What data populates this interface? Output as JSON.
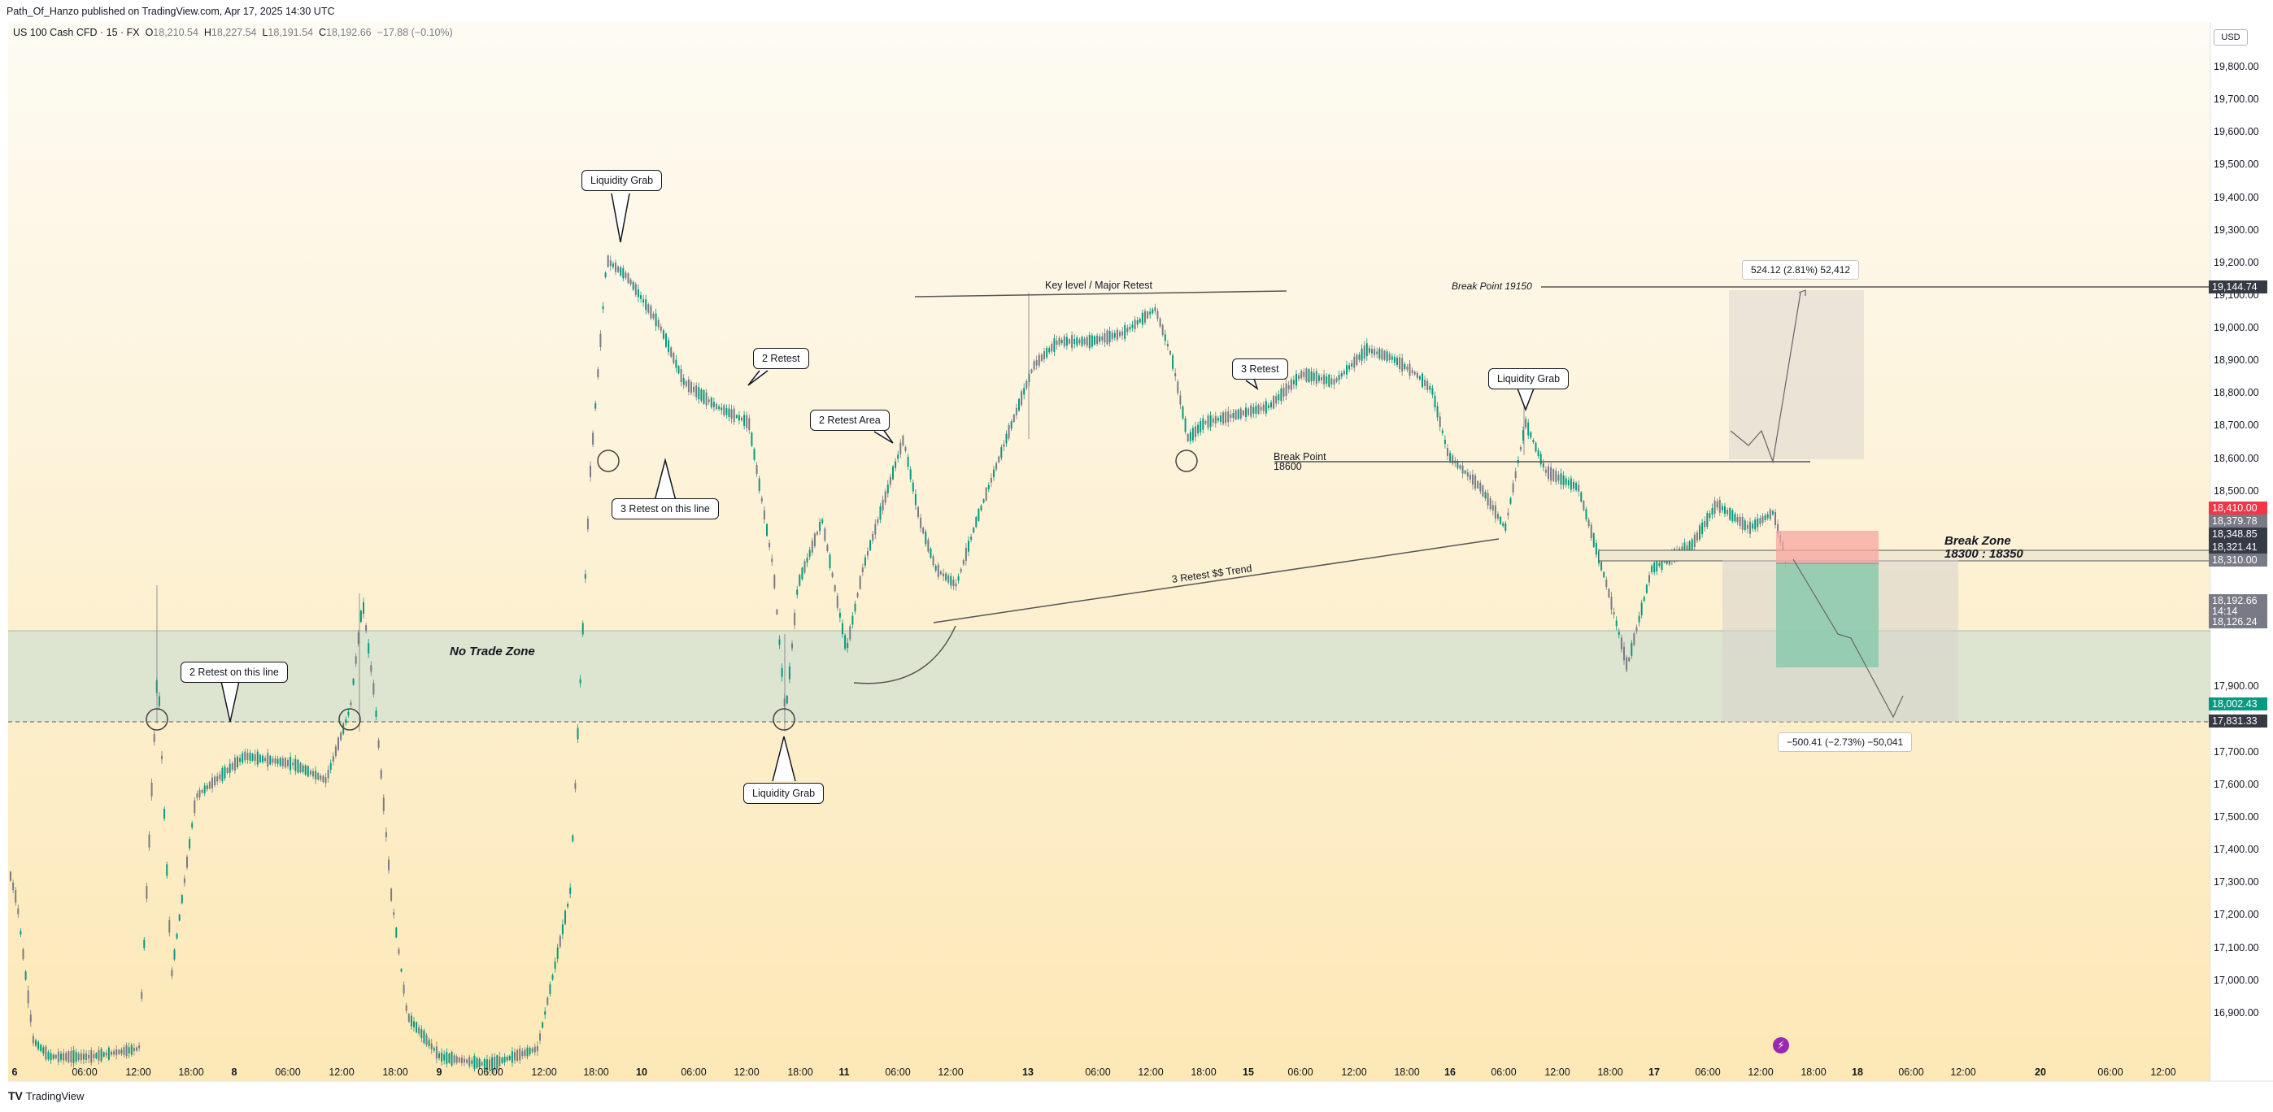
{
  "header": {
    "published_line": "Path_Of_Hanzo published on TradingView.com, Apr 17, 2025 14:30 UTC"
  },
  "legend": {
    "symbol": "US 100 Cash CFD · 15 · FX",
    "open_label": "O",
    "open": "18,210.54",
    "high_label": "H",
    "high": "18,227.54",
    "low_label": "L",
    "low": "18,191.54",
    "close_label": "C",
    "close": "18,192.66",
    "change": "−17.88 (−0.10%)"
  },
  "currency": "USD",
  "price_scale": {
    "ticks": [
      {
        "label": "19,800.00",
        "value": 19800
      },
      {
        "label": "19,700.00",
        "value": 19700
      },
      {
        "label": "19,600.00",
        "value": 19600
      },
      {
        "label": "19,500.00",
        "value": 19500
      },
      {
        "label": "19,400.00",
        "value": 19400
      },
      {
        "label": "19,300.00",
        "value": 19300
      },
      {
        "label": "19,200.00",
        "value": 19200
      },
      {
        "label": "19,100.00",
        "value": 19100
      },
      {
        "label": "19,000.00",
        "value": 19000
      },
      {
        "label": "18,900.00",
        "value": 18900
      },
      {
        "label": "18,800.00",
        "value": 18800
      },
      {
        "label": "18,700.00",
        "value": 18700
      },
      {
        "label": "18,600.00",
        "value": 18600
      },
      {
        "label": "18,500.00",
        "value": 18500
      },
      {
        "label": "17,900.00",
        "value": 17900
      },
      {
        "label": "17,800.00",
        "value": 17800
      },
      {
        "label": "17,700.00",
        "value": 17700
      },
      {
        "label": "17,600.00",
        "value": 17600
      },
      {
        "label": "17,500.00",
        "value": 17500
      },
      {
        "label": "17,400.00",
        "value": 17400
      },
      {
        "label": "17,300.00",
        "value": 17300
      },
      {
        "label": "17,200.00",
        "value": 17200
      },
      {
        "label": "17,100.00",
        "value": 17100
      },
      {
        "label": "17,000.00",
        "value": 17000
      },
      {
        "label": "16,900.00",
        "value": 16900
      }
    ],
    "tags": [
      {
        "label": "19,144.74",
        "value": 19144.74,
        "color": "#363a45"
      },
      {
        "label": "18,410.00",
        "value": 18410,
        "color": "#f23645"
      },
      {
        "label": "18,379.78",
        "value": 18379.78,
        "color": "#787b86"
      },
      {
        "label": "18,348.85",
        "value": 18348.85,
        "color": "#363a45"
      },
      {
        "label": "18,321.41",
        "value": 18321.41,
        "color": "#363a45"
      },
      {
        "label": "18,310.00",
        "value": 18310,
        "color": "#787b86"
      },
      {
        "label": "18,192.66",
        "value": 18192.66,
        "color": "#787b86"
      },
      {
        "label": "14:14",
        "value": 18160,
        "color": "#787b86"
      },
      {
        "label": "18,126.24",
        "value": 18126.24,
        "color": "#787b86"
      },
      {
        "label": "18,002.43",
        "value": 18002.43,
        "color": "#089981"
      },
      {
        "label": "17,831.33",
        "value": 17831.33,
        "color": "#363a45"
      }
    ]
  },
  "time_axis": [
    {
      "label": "6",
      "bold": true
    },
    {
      "label": "06:00"
    },
    {
      "label": "12:00"
    },
    {
      "label": "18:00"
    },
    {
      "label": "8",
      "bold": true
    },
    {
      "label": "06:00"
    },
    {
      "label": "12:00"
    },
    {
      "label": "18:00"
    },
    {
      "label": "9",
      "bold": true
    },
    {
      "label": "06:00"
    },
    {
      "label": "12:00"
    },
    {
      "label": "18:00"
    },
    {
      "label": "10",
      "bold": true
    },
    {
      "label": "06:00"
    },
    {
      "label": "12:00"
    },
    {
      "label": "18:00"
    },
    {
      "label": "11",
      "bold": true
    },
    {
      "label": "06:00"
    },
    {
      "label": "12:00"
    },
    {
      "label": "13",
      "bold": true
    },
    {
      "label": "06:00"
    },
    {
      "label": "12:00"
    },
    {
      "label": "18:00"
    },
    {
      "label": "15",
      "bold": true
    },
    {
      "label": "06:00"
    },
    {
      "label": "12:00"
    },
    {
      "label": "18:00"
    },
    {
      "label": "16",
      "bold": true
    },
    {
      "label": "06:00"
    },
    {
      "label": "12:00"
    },
    {
      "label": "18:00"
    },
    {
      "label": "17",
      "bold": true
    },
    {
      "label": "06:00"
    },
    {
      "label": "12:00"
    },
    {
      "label": "18:00"
    },
    {
      "label": "18",
      "bold": true
    },
    {
      "label": "06:00"
    },
    {
      "label": "12:00"
    },
    {
      "label": "20",
      "bold": true
    },
    {
      "label": "06:00"
    },
    {
      "label": "12:00"
    }
  ],
  "annotations": {
    "liquidity_grab_top": "Liquidity Grab",
    "retest_on_line_3": "3 Retest on this line",
    "retest_2": "2 Retest",
    "retest_area_2": "2 Retest Area",
    "liquidity_grab_bottom": "Liquidity Grab",
    "retest_on_line_2": "2 Retest on this line",
    "no_trade_zone": "No Trade Zone",
    "key_level": "Key level / Major Retest",
    "retest_3": "3 Retest",
    "trend_label": "3 Retest $$ Trend",
    "break_point_label": "Break Point",
    "break_point_value": "18600",
    "liquidity_grab_right": "Liquidity Grab",
    "break_point_19150": "Break Point 19150",
    "break_zone_title": "Break Zone",
    "break_zone_range": "18300 : 18350",
    "measure_up": "524.12 (2.81%) 52,412",
    "measure_down": "−500.41 (−2.73%) −50,041"
  },
  "icons": {
    "flash": "lightning-icon",
    "logo": "tradingview-logo-icon"
  },
  "footer": {
    "brand": "TradingView",
    "logo_text": "TV"
  },
  "colors": {
    "up": "#089981",
    "down": "#787b86",
    "bg_top": "#fdfaf0",
    "bg_bottom": "#fde9b8",
    "zone": "#d6e3d4"
  }
}
